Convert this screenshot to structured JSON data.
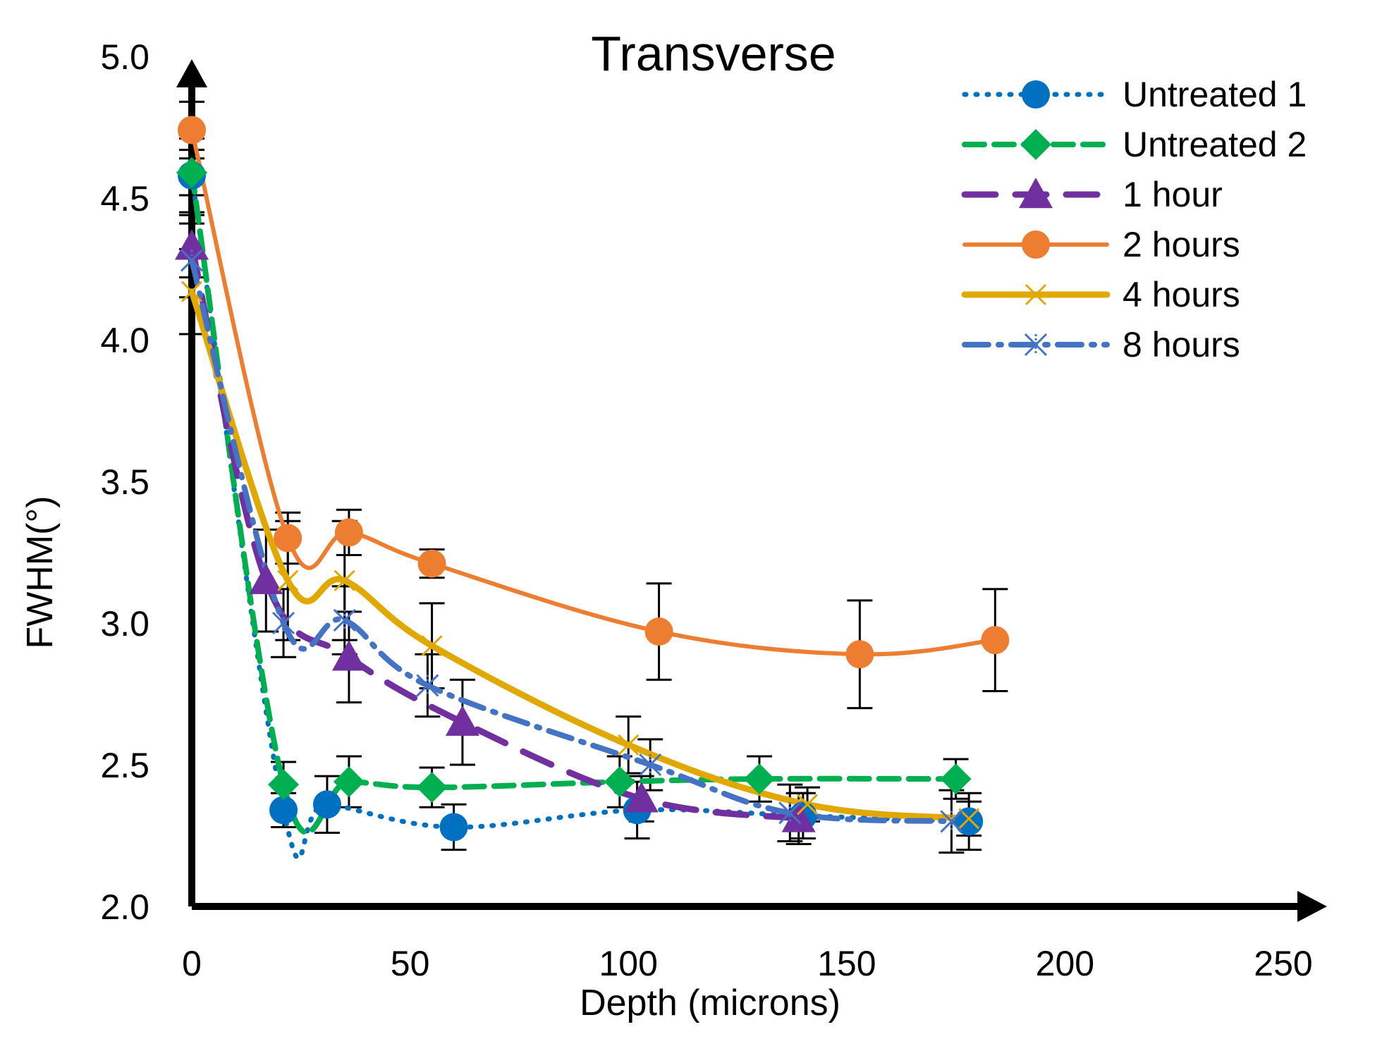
{
  "chart_data": {
    "type": "line",
    "title": "Transverse",
    "xlabel": "Depth (microns)",
    "ylabel": "FWHM(°)",
    "xlim": [
      0,
      250
    ],
    "ylim": [
      2.0,
      5.0
    ],
    "x_ticks": [
      "0",
      "50",
      "100",
      "150",
      "200",
      "250"
    ],
    "y_ticks": [
      "2.0",
      "2.5",
      "3.0",
      "3.5",
      "4.0",
      "4.5",
      "5.0"
    ],
    "grid": false,
    "legend_position": "top-right",
    "series": [
      {
        "name": "Untreated 1",
        "color": "#0070C0",
        "line": "dotted",
        "marker": "circle",
        "x": [
          0,
          21,
          31,
          60,
          102,
          140,
          178
        ],
        "y": [
          4.58,
          2.34,
          2.36,
          2.28,
          2.34,
          2.32,
          2.3
        ],
        "err": [
          0.13,
          0.06,
          0.1,
          0.08,
          0.1,
          0.08,
          0.1
        ]
      },
      {
        "name": "Untreated 2",
        "color": "#00B050",
        "line": "dashed",
        "marker": "diamond",
        "x": [
          0,
          21,
          36,
          55,
          98,
          130,
          175
        ],
        "y": [
          4.59,
          2.43,
          2.44,
          2.42,
          2.44,
          2.45,
          2.45
        ],
        "err": [
          0.08,
          0.08,
          0.09,
          0.07,
          0.09,
          0.08,
          0.07
        ]
      },
      {
        "name": "1 hour",
        "color": "#7030A0",
        "line": "longdash",
        "marker": "triangle",
        "x": [
          0,
          17,
          36,
          62,
          103,
          139
        ],
        "y": [
          4.33,
          3.15,
          2.88,
          2.65,
          2.38,
          2.31
        ],
        "err": [
          0.11,
          0.18,
          0.16,
          0.15,
          0.08,
          0.09
        ]
      },
      {
        "name": "2 hours",
        "color": "#ED7D31",
        "line": "solid",
        "marker": "circle",
        "x": [
          0,
          22,
          36,
          55,
          107,
          153,
          184
        ],
        "y": [
          4.74,
          3.3,
          3.32,
          3.21,
          2.97,
          2.89,
          2.94
        ],
        "err": [
          0.1,
          0.09,
          0.08,
          0.05,
          0.17,
          0.19,
          0.18
        ]
      },
      {
        "name": "4 hours",
        "color": "#E0A800",
        "line": "solid-thick",
        "marker": "x",
        "x": [
          0,
          22,
          35,
          55,
          100,
          141,
          178
        ],
        "y": [
          4.17,
          3.15,
          3.15,
          2.92,
          2.57,
          2.36,
          2.31
        ],
        "err": [
          0.15,
          0.21,
          0.21,
          0.15,
          0.1,
          0.06,
          0.06
        ]
      },
      {
        "name": "8 hours",
        "color": "#4472C4",
        "line": "dashdot",
        "marker": "asterisk",
        "x": [
          0,
          21,
          35,
          54,
          105,
          137,
          174
        ],
        "y": [
          4.28,
          3.0,
          3.01,
          2.78,
          2.5,
          2.33,
          2.3
        ],
        "err": [
          0.13,
          0.12,
          0.12,
          0.11,
          0.09,
          0.1,
          0.11
        ]
      }
    ]
  }
}
